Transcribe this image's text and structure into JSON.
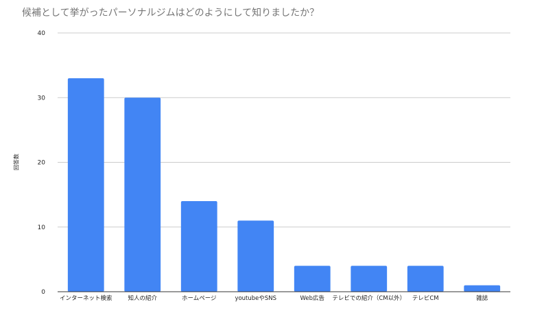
{
  "chart_data": {
    "type": "bar",
    "title": "候補として挙がったパーソナルジムはどのようにして知りましたか？",
    "ylabel": "回答数",
    "xlabel": "",
    "categories": [
      "インターネット検索",
      "知人の紹介",
      "ホームページ",
      "youtubeやSNS",
      "Web広告",
      "テレビでの紹介（CM以外）",
      "テレビCM",
      "雑誌"
    ],
    "values": [
      33,
      30,
      14,
      11,
      4,
      4,
      4,
      1
    ],
    "ylim": [
      0,
      40
    ],
    "yticks": [
      0,
      10,
      20,
      30,
      40
    ],
    "grid": true,
    "legend": "none",
    "colors": {
      "bar": "#4285f4",
      "grid": "#cccccc",
      "axis": "#333333",
      "title": "#757575",
      "text": "#222222"
    }
  }
}
